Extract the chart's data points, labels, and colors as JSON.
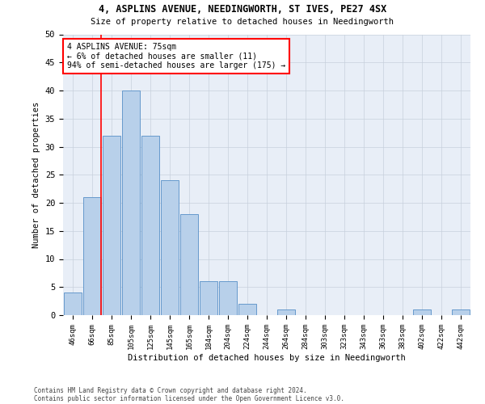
{
  "title1": "4, ASPLINS AVENUE, NEEDINGWORTH, ST IVES, PE27 4SX",
  "title2": "Size of property relative to detached houses in Needingworth",
  "xlabel": "Distribution of detached houses by size in Needingworth",
  "ylabel": "Number of detached properties",
  "footnote1": "Contains HM Land Registry data © Crown copyright and database right 2024.",
  "footnote2": "Contains public sector information licensed under the Open Government Licence v3.0.",
  "bar_labels": [
    "46sqm",
    "66sqm",
    "85sqm",
    "105sqm",
    "125sqm",
    "145sqm",
    "165sqm",
    "184sqm",
    "204sqm",
    "224sqm",
    "244sqm",
    "264sqm",
    "284sqm",
    "303sqm",
    "323sqm",
    "343sqm",
    "363sqm",
    "383sqm",
    "402sqm",
    "422sqm",
    "442sqm"
  ],
  "bar_values": [
    4,
    21,
    32,
    40,
    32,
    24,
    18,
    6,
    6,
    2,
    0,
    1,
    0,
    0,
    0,
    0,
    0,
    0,
    1,
    0,
    1
  ],
  "bar_color": "#b8d0ea",
  "bar_edge_color": "#6699cc",
  "annotation_text": "4 ASPLINS AVENUE: 75sqm\n← 6% of detached houses are smaller (11)\n94% of semi-detached houses are larger (175) →",
  "annotation_box_color": "white",
  "annotation_box_edge": "red",
  "red_line_color": "red",
  "ylim": [
    0,
    50
  ],
  "yticks": [
    0,
    5,
    10,
    15,
    20,
    25,
    30,
    35,
    40,
    45,
    50
  ],
  "background_color": "white",
  "axes_bg_color": "#e8eef7",
  "grid_color": "#c8d0dc"
}
